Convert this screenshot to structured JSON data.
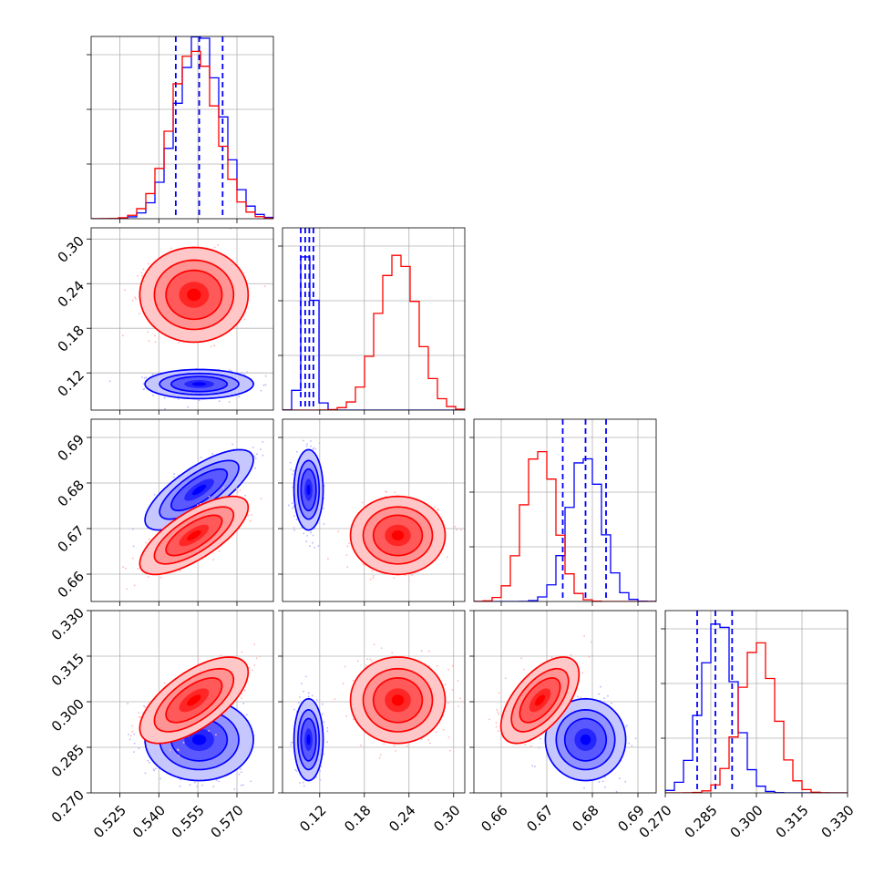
{
  "chart_data": {
    "type": "corner",
    "parameters": [
      "p0",
      "p1",
      "p2",
      "p3"
    ],
    "axis_ranges": [
      [
        0.514,
        0.584
      ],
      [
        0.07,
        0.315
      ],
      [
        0.654,
        0.694
      ],
      [
        0.27,
        0.33
      ]
    ],
    "tick_values": [
      [
        0.525,
        0.54,
        0.555,
        0.57
      ],
      [
        0.12,
        0.18,
        0.24,
        0.3
      ],
      [
        0.66,
        0.67,
        0.68,
        0.69
      ],
      [
        0.27,
        0.285,
        0.3,
        0.315,
        0.33
      ]
    ],
    "tick_labels": [
      [
        "0.525",
        "0.540",
        "0.555",
        "0.570"
      ],
      [
        "0.12",
        "0.18",
        "0.24",
        "0.30"
      ],
      [
        "0.66",
        "0.67",
        "0.68",
        "0.69"
      ],
      [
        "0.270",
        "0.285",
        "0.300",
        "0.315",
        "0.330"
      ]
    ],
    "grid": true,
    "series": [
      {
        "color": "#0000ff",
        "mean": [
          0.5555,
          0.105,
          0.6785,
          0.2875
        ],
        "sd": [
          0.0085,
          0.008,
          0.0036,
          0.0055
        ],
        "correlation": [
          [
            1,
            0.0,
            0.75,
            0.0
          ],
          [
            0.0,
            1,
            0.0,
            0.0
          ],
          [
            0.75,
            0.0,
            1,
            0.0
          ],
          [
            0.0,
            0.0,
            0.0,
            1
          ]
        ],
        "quantile_lines": [
          [
            0.5465,
            0.5555,
            0.5645
          ],
          [
            0.0945,
            0.1005,
            0.106,
            0.1115
          ],
          [
            0.6735,
            0.6785,
            0.683
          ],
          [
            0.2805,
            0.2865,
            0.292
          ]
        ],
        "hist_peak": [
          1.05,
          1.0,
          0.85,
          1.0
        ]
      },
      {
        "color": "#ff0000",
        "mean": [
          0.5535,
          0.225,
          0.6685,
          0.3005
        ],
        "sd": [
          0.0085,
          0.026,
          0.0035,
          0.0058
        ],
        "correlation": [
          [
            1,
            0.0,
            0.72,
            0.65
          ],
          [
            0.0,
            1,
            0.0,
            0.0
          ],
          [
            0.72,
            0.0,
            1,
            0.6
          ],
          [
            0.65,
            0.0,
            0.6,
            1
          ]
        ],
        "quantile_lines": [
          null,
          null,
          null,
          null
        ],
        "hist_peak": [
          1.0,
          0.92,
          0.9,
          0.86
        ]
      }
    ]
  }
}
